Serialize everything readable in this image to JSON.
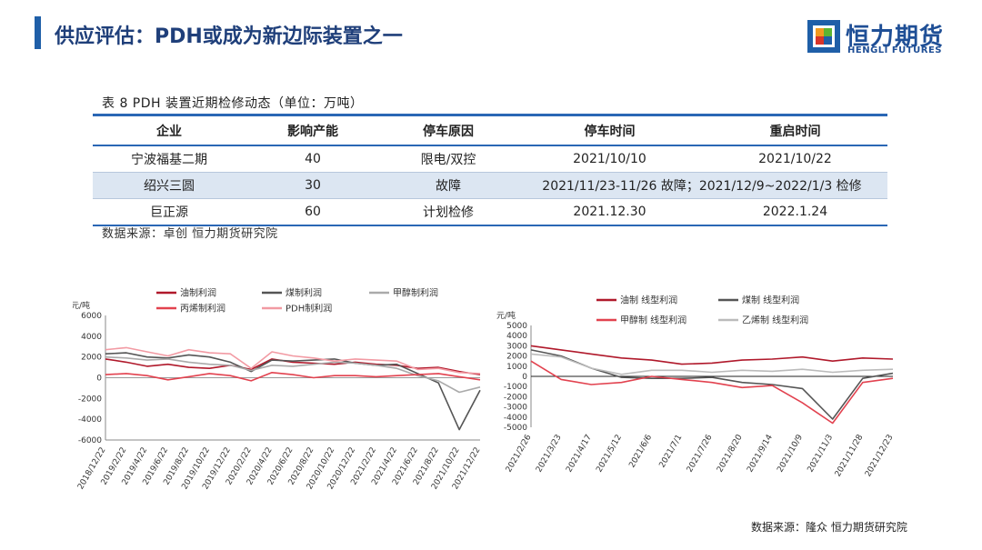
{
  "header": {
    "title": "供应评估：PDH或成为新边际装置之一",
    "logo_cn": "恒力期货",
    "logo_en": "HENGLI FUTURES",
    "logo_colors": {
      "blue": "#1f5fa8",
      "orange": "#f29a1f",
      "green": "#5cb531",
      "red": "#d9352a"
    }
  },
  "table": {
    "caption": "表 8 PDH 装置近期检修动态（单位：万吨）",
    "columns": [
      "企业",
      "影响产能",
      "停车原因",
      "停车时间",
      "重启时间"
    ],
    "rows": [
      [
        "宁波福基二期",
        "40",
        "限电/双控",
        "2021/10/10",
        "2021/10/22"
      ],
      [
        "绍兴三圆",
        "30",
        "故障",
        "2021/11/23-11/26 故障；2021/12/9~2022/1/3 检修",
        ""
      ],
      [
        "巨正源",
        "60",
        "计划检修",
        "2021.12.30",
        "2022.1.24"
      ]
    ],
    "source": "数据来源：卓创 恒力期货研究院"
  },
  "footer_source": "数据来源：隆众 恒力期货研究院",
  "chart_data": [
    {
      "type": "line",
      "ylabel": "元/吨",
      "ylim": [
        -6000,
        6000
      ],
      "yticks": [
        6000,
        4000,
        2000,
        0,
        -2000,
        -4000,
        -6000
      ],
      "x": [
        "2018/12/22",
        "2019/2/22",
        "2019/4/22",
        "2019/6/22",
        "2019/8/22",
        "2019/10/22",
        "2019/12/22",
        "2020/2/22",
        "2020/4/22",
        "2020/6/22",
        "2020/8/22",
        "2020/10/22",
        "2020/12/22",
        "2021/2/22",
        "2021/4/22",
        "2021/6/22",
        "2021/8/22",
        "2021/10/22",
        "2021/12/22"
      ],
      "legend": [
        "油制利润",
        "煤制利润",
        "甲醇制利润",
        "丙烯制利润",
        "PDH制利润"
      ],
      "series": [
        {
          "name": "油制利润",
          "color": "#b0192b",
          "values": [
            1800,
            1500,
            1100,
            1300,
            1000,
            900,
            1200,
            800,
            1800,
            1500,
            1400,
            1300,
            1500,
            1300,
            1200,
            900,
            1000,
            600,
            300
          ]
        },
        {
          "name": "煤制利润",
          "color": "#555555",
          "values": [
            2300,
            2400,
            2000,
            1900,
            2200,
            2000,
            1500,
            600,
            1700,
            1600,
            1700,
            1800,
            1400,
            1200,
            1300,
            400,
            -500,
            -5000,
            -1200
          ]
        },
        {
          "name": "甲醇制利润",
          "color": "#aaaaaa",
          "values": [
            2000,
            1900,
            1700,
            1800,
            1500,
            1300,
            1200,
            700,
            1200,
            1100,
            1300,
            1500,
            1400,
            1200,
            900,
            200,
            -300,
            -1400,
            -900
          ]
        },
        {
          "name": "丙烯制利润",
          "color": "#e2424f",
          "values": [
            300,
            400,
            200,
            -200,
            100,
            400,
            200,
            -300,
            500,
            300,
            0,
            200,
            200,
            100,
            200,
            300,
            400,
            100,
            -200
          ]
        },
        {
          "name": "PDH制利润",
          "color": "#f29aa3",
          "values": [
            2700,
            2900,
            2500,
            2100,
            2700,
            2400,
            2300,
            900,
            2500,
            2100,
            1900,
            1600,
            1800,
            1700,
            1600,
            800,
            900,
            500,
            400
          ]
        }
      ]
    },
    {
      "type": "line",
      "ylabel": "元/吨",
      "ylim": [
        -5000,
        5000
      ],
      "yticks": [
        5000,
        4000,
        3000,
        2000,
        1000,
        0,
        -1000,
        -2000,
        -3000,
        -4000,
        -5000
      ],
      "x": [
        "2021/2/26",
        "2021/3/23",
        "2021/4/17",
        "2021/5/12",
        "2021/6/6",
        "2021/7/1",
        "2021/7/26",
        "2021/8/20",
        "2021/9/14",
        "2021/10/9",
        "2021/11/3",
        "2021/11/28",
        "2021/12/23"
      ],
      "legend": [
        "油制 线型利润",
        "煤制 线型利润",
        "甲醇制 线型利润",
        "乙烯制 线型利润"
      ],
      "series": [
        {
          "name": "油制 线型利润",
          "color": "#b0192b",
          "values": [
            3000,
            2600,
            2200,
            1800,
            1600,
            1200,
            1300,
            1600,
            1700,
            1900,
            1500,
            1800,
            1700
          ]
        },
        {
          "name": "煤制 线型利润",
          "color": "#555555",
          "values": [
            2600,
            2000,
            800,
            -100,
            -200,
            -200,
            -100,
            -600,
            -800,
            -1200,
            -4200,
            -200,
            300
          ]
        },
        {
          "name": "甲醇制 线型利润",
          "color": "#e2424f",
          "values": [
            1500,
            -300,
            -800,
            -600,
            0,
            -300,
            -600,
            -1100,
            -900,
            -2600,
            -4600,
            -600,
            -200
          ]
        },
        {
          "name": "乙烯制 线型利润",
          "color": "#bbbbbb",
          "values": [
            2200,
            1900,
            800,
            200,
            600,
            600,
            400,
            600,
            500,
            700,
            400,
            600,
            700
          ]
        }
      ]
    }
  ]
}
